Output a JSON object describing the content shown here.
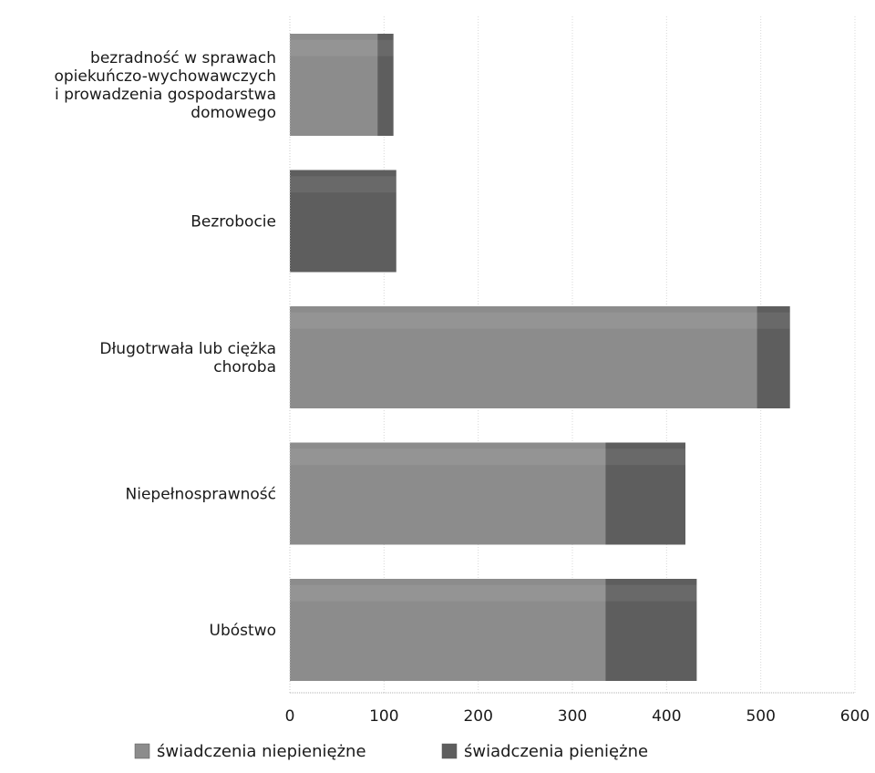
{
  "chart_data": {
    "type": "bar",
    "orientation": "horizontal",
    "stacked": true,
    "categories": [
      [
        "bezradność w sprawach",
        "opiekuńczo-wychowawczych",
        "i prowadzenia gospodarstwa",
        "domowego"
      ],
      [
        "Bezrobocie"
      ],
      [
        "Długotrwała lub ciężka",
        "choroba"
      ],
      [
        "Niepełnosprawność"
      ],
      [
        "Ubóstwo"
      ]
    ],
    "series": [
      {
        "name": "świadczenia niepieniężne",
        "color": "#8c8c8c",
        "values": [
          93,
          0,
          496,
          335,
          335
        ]
      },
      {
        "name": "świadczenia pieniężne",
        "color": "#5e5e5e",
        "values": [
          17,
          113,
          35,
          85,
          97
        ]
      }
    ],
    "xlim": [
      0,
      600
    ],
    "xticks": [
      0,
      100,
      200,
      300,
      400,
      500,
      600
    ],
    "grid": true,
    "legend_position": "bottom",
    "title": "",
    "xlabel": "",
    "ylabel": ""
  }
}
